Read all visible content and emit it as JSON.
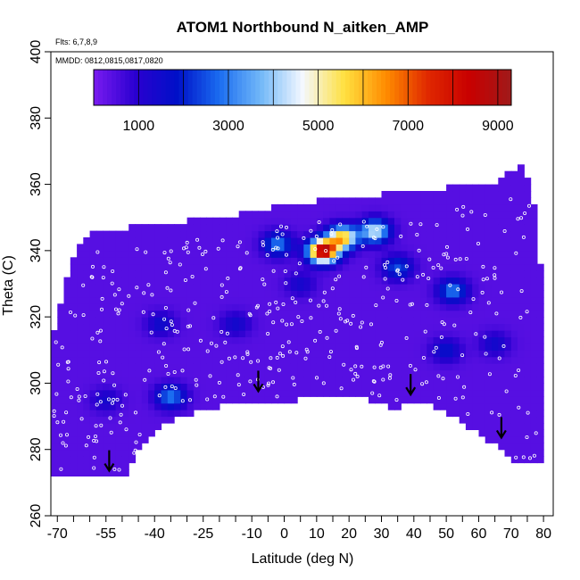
{
  "chart_data": {
    "type": "heatmap",
    "title": "ATOM1 Northbound N_aitken_AMP",
    "annotations": [
      "Flts: 6,7,8,9",
      "MMDD: 0812,0815,0817,0820"
    ],
    "xlabel": "Latitude (deg N)",
    "ylabel": "Theta (C)",
    "xlim": [
      -72,
      83
    ],
    "ylim": [
      260,
      400
    ],
    "x_ticks": [
      -70,
      -55,
      -40,
      -25,
      -10,
      0,
      10,
      20,
      30,
      40,
      50,
      60,
      70,
      80
    ],
    "x_tick_labels": [
      "-70",
      "-55",
      "-40",
      "-25",
      "-10",
      "0",
      "10",
      "20",
      "30",
      "40",
      "50",
      "60",
      "70",
      "80"
    ],
    "x_minor_step": 5,
    "y_ticks": [
      260,
      280,
      300,
      320,
      340,
      360,
      380,
      400
    ],
    "y_tick_labels": [
      "260",
      "280",
      "300",
      "320",
      "340",
      "360",
      "380",
      "400"
    ],
    "colorbar": {
      "range": [
        0,
        9300
      ],
      "ticks": [
        1000,
        3000,
        5000,
        7000,
        9000
      ],
      "tick_labels": [
        "1000",
        "3000",
        "5000",
        "7000",
        "9000"
      ],
      "colors": [
        "#7a1cf0",
        "#2a00d0",
        "#0010c8",
        "#1a6cf0",
        "#72b8f8",
        "#f4f8ff",
        "#ffe040",
        "#ff8c00",
        "#e02800",
        "#c80000",
        "#a01a1a"
      ]
    },
    "domain_top": [
      [
        -72,
        312
      ],
      [
        -66,
        336
      ],
      [
        -60,
        345
      ],
      [
        -48,
        346
      ],
      [
        -40,
        347
      ],
      [
        -30,
        348
      ],
      [
        -20,
        349
      ],
      [
        -10,
        351
      ],
      [
        0,
        353
      ],
      [
        10,
        354
      ],
      [
        20,
        355
      ],
      [
        30,
        356
      ],
      [
        40,
        357
      ],
      [
        50,
        358
      ],
      [
        60,
        359
      ],
      [
        66,
        360
      ],
      [
        70,
        363
      ],
      [
        74,
        366
      ],
      [
        78,
        350
      ],
      [
        80,
        320
      ]
    ],
    "domain_bottom": [
      [
        -72,
        272
      ],
      [
        -60,
        272
      ],
      [
        -50,
        272
      ],
      [
        -45,
        280
      ],
      [
        -38,
        288
      ],
      [
        -28,
        292
      ],
      [
        -20,
        294
      ],
      [
        -10,
        294
      ],
      [
        0,
        295
      ],
      [
        10,
        298
      ],
      [
        20,
        297
      ],
      [
        30,
        295
      ],
      [
        35,
        293
      ],
      [
        40,
        296
      ],
      [
        48,
        293
      ],
      [
        58,
        287
      ],
      [
        65,
        282
      ],
      [
        72,
        276
      ],
      [
        80,
        276
      ]
    ],
    "hotspots": [
      {
        "lat": 12,
        "theta": 340,
        "value": 9000
      },
      {
        "lat": 18,
        "theta": 344,
        "value": 6000
      },
      {
        "lat": 28,
        "theta": 346,
        "value": 4500
      },
      {
        "lat": -2,
        "theta": 342,
        "value": 3000
      },
      {
        "lat": 52,
        "theta": 328,
        "value": 3000
      },
      {
        "lat": 35,
        "theta": 335,
        "value": 2500
      },
      {
        "lat": -35,
        "theta": 296,
        "value": 3000
      },
      {
        "lat": 50,
        "theta": 310,
        "value": 1800
      },
      {
        "lat": -38,
        "theta": 318,
        "value": 1600
      },
      {
        "lat": -15,
        "theta": 318,
        "value": 1500
      },
      {
        "lat": 65,
        "theta": 312,
        "value": 1500
      },
      {
        "lat": 5,
        "theta": 330,
        "value": 1400
      },
      {
        "lat": -55,
        "theta": 295,
        "value": 1400
      }
    ],
    "arrows": [
      {
        "lat": -54,
        "theta": 276
      },
      {
        "lat": -8,
        "theta": 300
      },
      {
        "lat": 39,
        "theta": 299
      },
      {
        "lat": 67,
        "theta": 286
      }
    ]
  }
}
